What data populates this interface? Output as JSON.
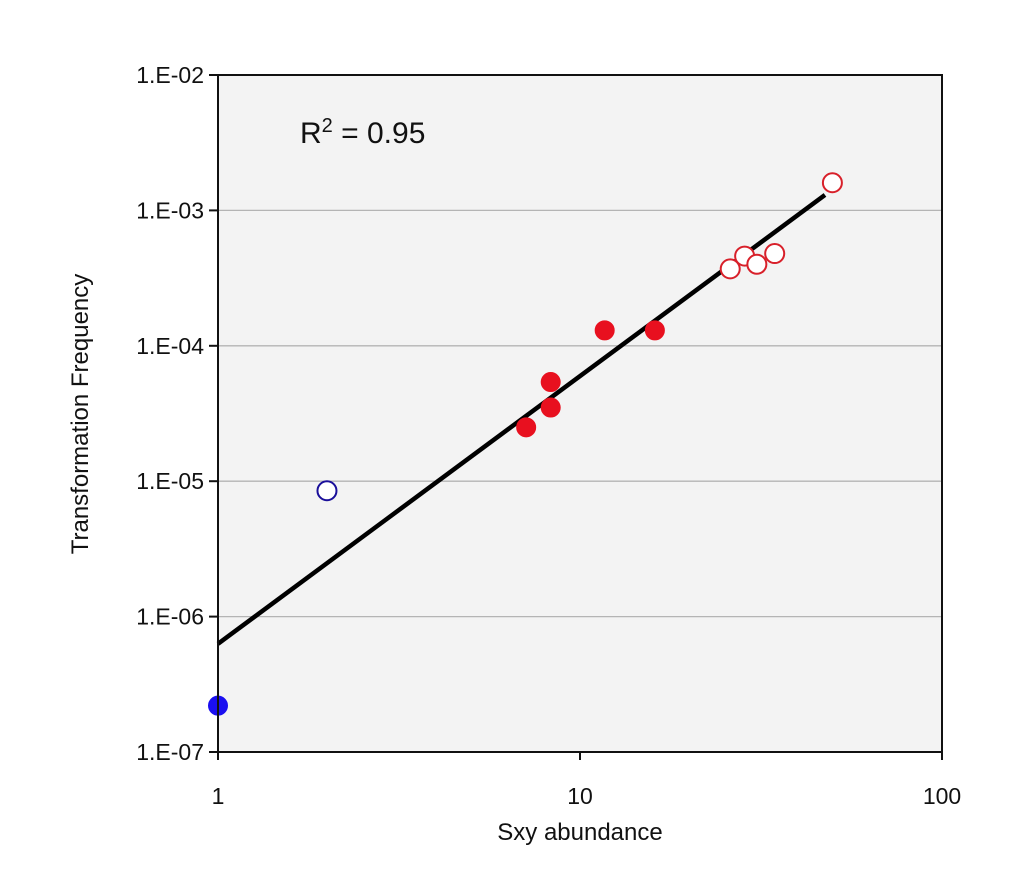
{
  "chart_data": {
    "type": "scatter",
    "title": "",
    "xlabel": "Sxy abundance",
    "ylabel": "Transformation Frequency",
    "xscale": "log",
    "yscale": "log",
    "xlim": [
      1,
      100
    ],
    "ylim": [
      1e-07,
      0.01
    ],
    "x_ticks": [
      1,
      10,
      100
    ],
    "x_tick_labels": [
      "1",
      "10",
      "100"
    ],
    "y_ticks": [
      1e-07,
      1e-06,
      1e-05,
      0.0001,
      0.001,
      0.01
    ],
    "y_tick_labels": [
      "1.E-07",
      "1.E-06",
      "1.E-05",
      "1.E-04",
      "1.E-03",
      "1.E-02"
    ],
    "grid": "horizontal",
    "legend": "none",
    "annotation": {
      "base": "R",
      "superscript": "2",
      "rest": " = 0.95"
    },
    "series": [
      {
        "style": "filled",
        "color": "#1a0ff0",
        "points": [
          {
            "x": 1.0,
            "y": 2.2e-07
          }
        ]
      },
      {
        "style": "open",
        "color": "#1a0f9a",
        "points": [
          {
            "x": 2.0,
            "y": 8.5e-06
          }
        ]
      },
      {
        "style": "filled",
        "color": "#e8101f",
        "points": [
          {
            "x": 7.1,
            "y": 2.5e-05
          },
          {
            "x": 8.3,
            "y": 3.5e-05
          },
          {
            "x": 8.3,
            "y": 5.4e-05
          },
          {
            "x": 11.7,
            "y": 0.00013
          },
          {
            "x": 16.1,
            "y": 0.00013
          }
        ]
      },
      {
        "style": "open",
        "color": "#d8202a",
        "points": [
          {
            "x": 26.0,
            "y": 0.00037
          },
          {
            "x": 28.5,
            "y": 0.00046
          },
          {
            "x": 30.8,
            "y": 0.0004
          },
          {
            "x": 34.5,
            "y": 0.00048
          },
          {
            "x": 49.8,
            "y": 0.0016
          }
        ]
      }
    ],
    "trendline": {
      "type": "power",
      "points": [
        {
          "x": 1.0,
          "y": 6.3e-07
        },
        {
          "x": 47.5,
          "y": 0.0013
        }
      ],
      "color": "#000000"
    },
    "colors": {
      "plot_background": "#f3f3f3",
      "gridline": "#b4b4b4",
      "axis": "#111111"
    }
  }
}
